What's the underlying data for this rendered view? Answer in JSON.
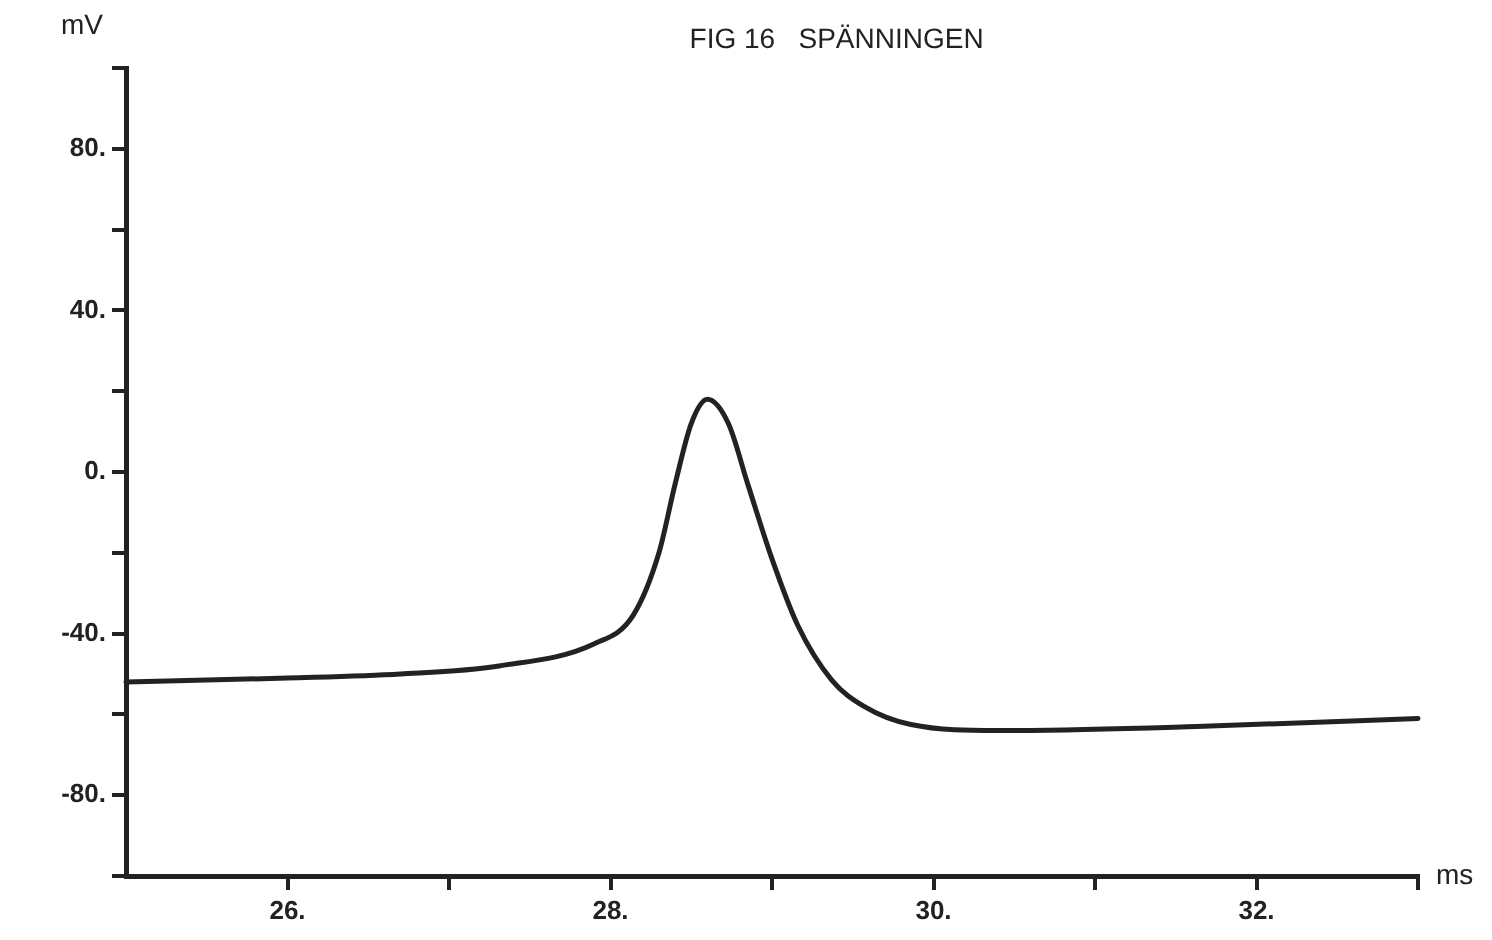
{
  "chart_data": {
    "type": "line",
    "title": "FIG 16   SPÄNNINGEN",
    "xlabel": "ms",
    "ylabel": "mV",
    "series": [
      {
        "color": "#222222",
        "x": [
          25,
          26,
          26.7,
          27.31,
          27.9,
          28.14,
          28.3,
          28.4,
          28.5,
          28.6,
          28.73,
          28.85,
          29.0,
          29.16,
          29.37,
          29.57,
          29.86,
          30.4,
          31.63,
          33
        ],
        "values": [
          -52,
          -51,
          -50,
          -48,
          -42.5,
          -35.5,
          -20,
          -3,
          12,
          18,
          12,
          -3,
          -21.5,
          -38,
          -51.5,
          -58,
          -62.5,
          -64,
          -63,
          -61
        ]
      }
    ],
    "xlim": [
      25,
      33
    ],
    "ylim": [
      -100,
      100
    ],
    "xticks": [
      {
        "value": 26,
        "label": "26."
      },
      {
        "value": 27,
        "label": null
      },
      {
        "value": 28,
        "label": "28."
      },
      {
        "value": 29,
        "label": null
      },
      {
        "value": 30,
        "label": "30."
      },
      {
        "value": 31,
        "label": null
      },
      {
        "value": 32,
        "label": "32."
      },
      {
        "value": 33,
        "label": null
      }
    ],
    "yticks": [
      {
        "value": -100,
        "label": null
      },
      {
        "value": -80,
        "label": "-80."
      },
      {
        "value": -60,
        "label": null
      },
      {
        "value": -40,
        "label": "-40."
      },
      {
        "value": -20,
        "label": null
      },
      {
        "value": 0,
        "label": "0."
      },
      {
        "value": 20,
        "label": null
      },
      {
        "value": 40,
        "label": "40."
      },
      {
        "value": 60,
        "label": null
      },
      {
        "value": 80,
        "label": "80."
      },
      {
        "value": 100,
        "label": null
      }
    ],
    "grid": false,
    "legend": false,
    "marker": "none",
    "line_style": "solid"
  }
}
